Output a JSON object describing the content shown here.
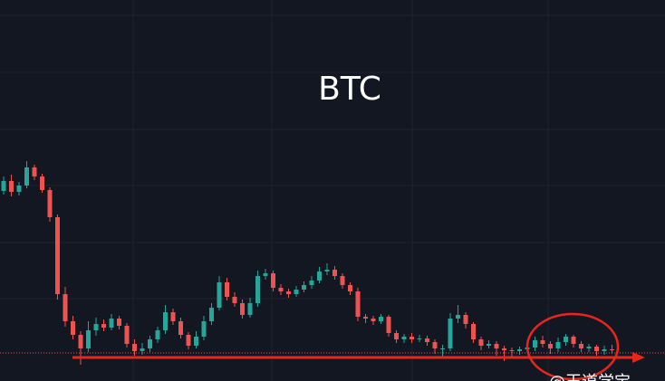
{
  "chart_data": {
    "type": "candlestick",
    "title": "BTC",
    "watermark": "@王道学宝",
    "up_color": "#26a69a",
    "down_color": "#ef5350",
    "ylim": [
      0,
      421
    ],
    "open": [
      210,
      221,
      209,
      216,
      236,
      226,
      211,
      181,
      96,
      66,
      51,
      36,
      56,
      63,
      59,
      69,
      61,
      41,
      33,
      36,
      46,
      56,
      76,
      66,
      51,
      39,
      49,
      66,
      81,
      109,
      93,
      86,
      73,
      86,
      116,
      119,
      103,
      99,
      96,
      101,
      106,
      111,
      121,
      123,
      116,
      106,
      99,
      71,
      69,
      66,
      71,
      53,
      46,
      49,
      46,
      47,
      43,
      36,
      36,
      69,
      73,
      63,
      46,
      39,
      41,
      36,
      34,
      33,
      35,
      37,
      45,
      41,
      36,
      43,
      49,
      41,
      36,
      38,
      33,
      35
    ],
    "high": [
      226,
      228,
      220,
      243,
      239,
      229,
      214,
      184,
      104,
      72,
      55,
      66,
      70,
      68,
      74,
      72,
      64,
      46,
      42,
      50,
      60,
      84,
      80,
      70,
      54,
      55,
      72,
      86,
      116,
      114,
      98,
      90,
      92,
      122,
      124,
      122,
      107,
      102,
      105,
      110,
      116,
      126,
      130,
      127,
      119,
      109,
      103,
      74,
      72,
      74,
      73,
      56,
      52,
      53,
      51,
      50,
      46,
      40,
      75,
      84,
      76,
      65,
      49,
      45,
      44,
      39,
      37,
      38,
      40,
      49,
      50,
      44,
      48,
      52,
      51,
      44,
      41,
      40,
      39,
      40
    ],
    "low": [
      206,
      204,
      205,
      213,
      222,
      208,
      176,
      90,
      60,
      46,
      18,
      32,
      50,
      55,
      56,
      57,
      37,
      28,
      29,
      32,
      42,
      52,
      62,
      47,
      35,
      36,
      45,
      62,
      78,
      89,
      82,
      69,
      70,
      82,
      112,
      99,
      95,
      92,
      93,
      98,
      102,
      108,
      117,
      112,
      102,
      95,
      66,
      64,
      62,
      63,
      49,
      42,
      42,
      42,
      43,
      39,
      30,
      26,
      33,
      64,
      58,
      42,
      34,
      36,
      28,
      22,
      26,
      29,
      31,
      33,
      37,
      30,
      32,
      39,
      37,
      32,
      32,
      28,
      29,
      30
    ],
    "close": [
      221,
      209,
      216,
      236,
      226,
      211,
      181,
      96,
      66,
      51,
      36,
      56,
      63,
      59,
      69,
      61,
      41,
      33,
      36,
      46,
      56,
      76,
      66,
      51,
      39,
      49,
      66,
      81,
      109,
      93,
      86,
      73,
      86,
      116,
      119,
      103,
      99,
      96,
      101,
      106,
      111,
      121,
      123,
      116,
      106,
      99,
      71,
      69,
      66,
      71,
      53,
      46,
      49,
      46,
      47,
      43,
      36,
      36,
      69,
      73,
      63,
      46,
      39,
      41,
      36,
      34,
      33,
      35,
      37,
      45,
      41,
      36,
      43,
      49,
      41,
      36,
      38,
      33,
      35,
      34
    ]
  }
}
